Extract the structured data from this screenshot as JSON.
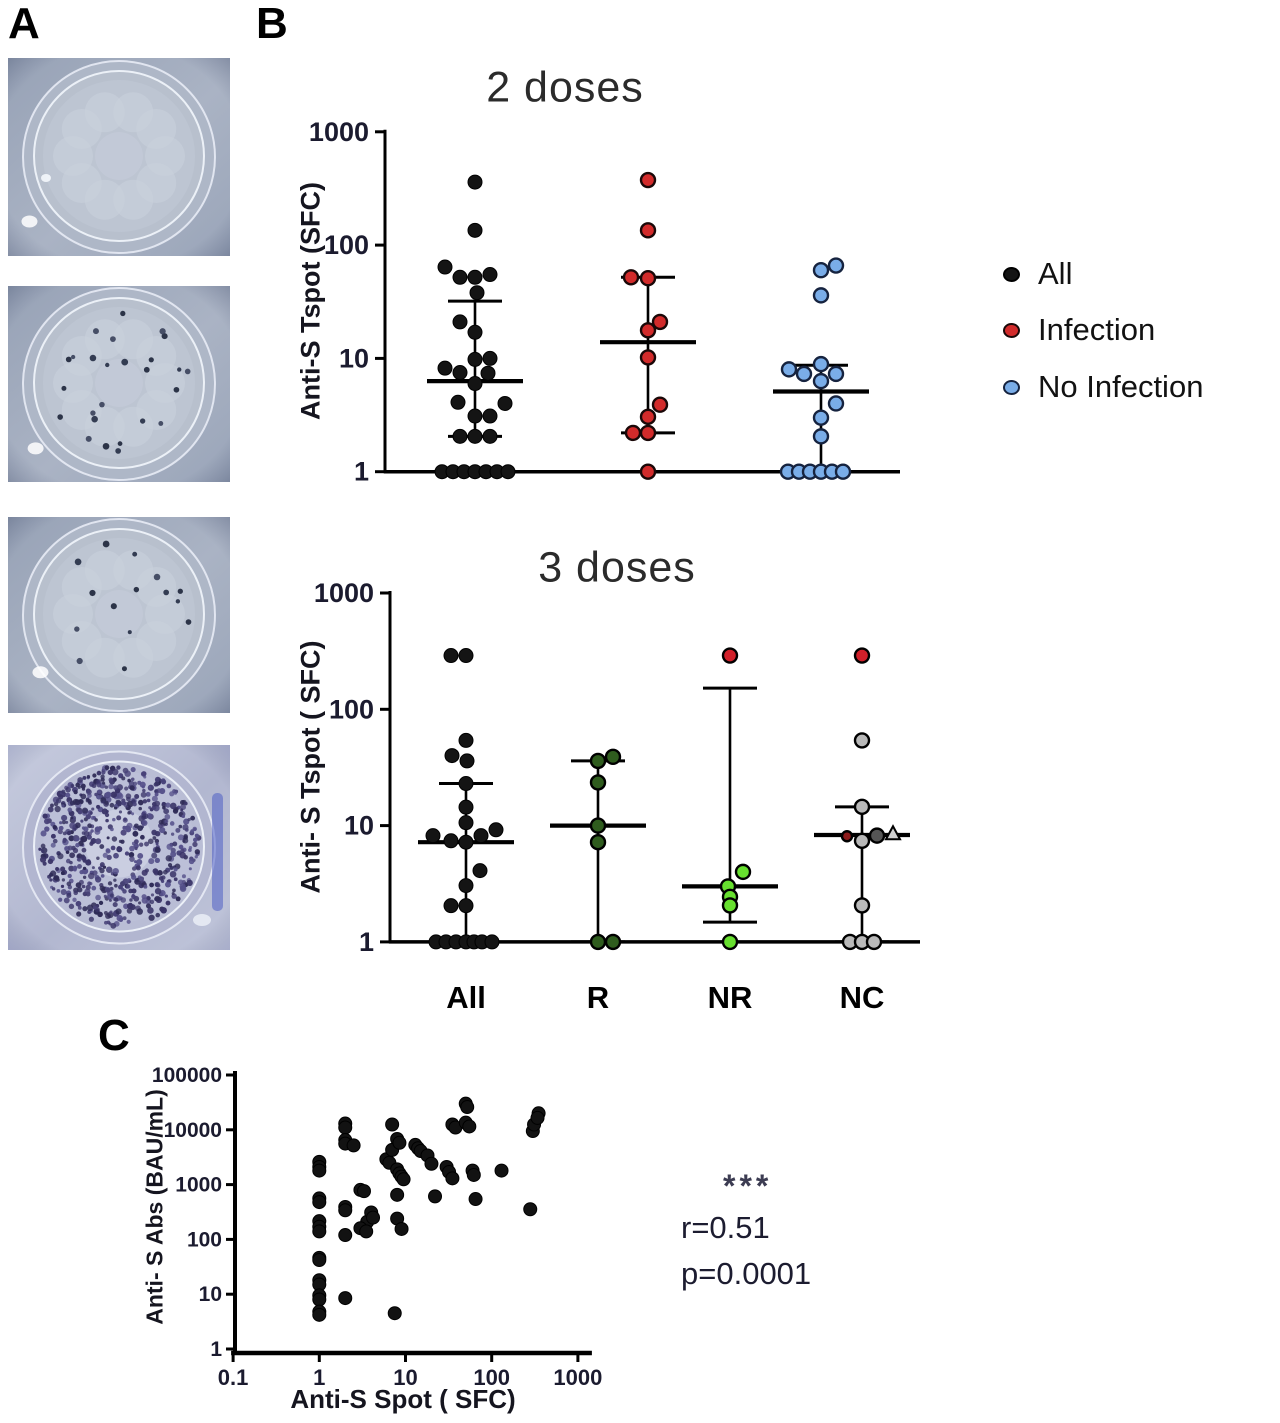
{
  "figure": {
    "background": "#ffffff"
  },
  "panels": {
    "a_label": "A",
    "b_label": "B",
    "c_label": "C"
  },
  "panel_a": {
    "description": "ELISpot well photographs",
    "wells": [
      {
        "name": "well-no-spots",
        "spot_count": 0,
        "appearance": "clean bluish well",
        "dense": false
      },
      {
        "name": "well-scattered-spots",
        "spot_count": 26,
        "appearance": "well with scattered dark spots",
        "dense": false
      },
      {
        "name": "well-few-spots",
        "spot_count": 15,
        "appearance": "well with few dark spots",
        "dense": false
      },
      {
        "name": "well-dense-spots",
        "spot_count": 650,
        "appearance": "well densely covered with dark purple spots",
        "dense": true
      }
    ]
  },
  "legend": {
    "items": [
      {
        "label": "All",
        "color": "#141414",
        "outline": "#000000"
      },
      {
        "label": "Infection",
        "color": "#d22b2b",
        "outline": "#1a0808"
      },
      {
        "label": "No Infection",
        "color": "#7aade8",
        "outline": "#16233f"
      }
    ]
  },
  "chart_data": [
    {
      "type": "dot-plot",
      "title": "2 doses",
      "ylabel": "Anti-S Tspot (SFC)",
      "yticks": [
        1,
        10,
        100,
        1000
      ],
      "ylim": [
        1,
        1000
      ],
      "legend_position": "right",
      "groups": [
        {
          "name": "All",
          "marker_color": "#141414",
          "outline": "#000000",
          "median": 6.3,
          "whisker_low": 2.05,
          "whisker_high": 32,
          "points": [
            [
              0,
              360
            ],
            [
              0,
              135
            ],
            [
              -30,
              64
            ],
            [
              -15,
              52
            ],
            [
              0,
              52
            ],
            [
              15,
              55
            ],
            [
              2,
              38
            ],
            [
              -15,
              21
            ],
            [
              0,
              17
            ],
            [
              15,
              10
            ],
            [
              0,
              9.8
            ],
            [
              -30,
              8.2
            ],
            [
              -15,
              7.5
            ],
            [
              13,
              7.4
            ],
            [
              0,
              6
            ],
            [
              -17,
              4.1
            ],
            [
              30,
              4
            ],
            [
              0,
              3.1
            ],
            [
              15,
              3.1
            ],
            [
              -15,
              2.05
            ],
            [
              0,
              2.05
            ],
            [
              15,
              2.05
            ],
            [
              -33,
              1
            ],
            [
              -22,
              1
            ],
            [
              -11,
              1
            ],
            [
              0,
              1
            ],
            [
              11,
              1
            ],
            [
              22,
              1
            ],
            [
              33,
              1
            ]
          ]
        },
        {
          "name": "Infection",
          "marker_color": "#d22b2b",
          "outline": "#1a0808",
          "median": 13.9,
          "whisker_low": 2.2,
          "whisker_high": 52,
          "points": [
            [
              0,
              375
            ],
            [
              0,
              135
            ],
            [
              -17,
              52
            ],
            [
              0,
              51
            ],
            [
              12,
              21
            ],
            [
              0,
              17.7
            ],
            [
              0,
              10.2
            ],
            [
              12,
              3.9
            ],
            [
              0,
              3.05
            ],
            [
              -15,
              2.2
            ],
            [
              0,
              2.2
            ],
            [
              0,
              1
            ]
          ]
        },
        {
          "name": "No Infection",
          "marker_color": "#7aade8",
          "outline": "#16233f",
          "median": 5.1,
          "whisker_low": 1,
          "whisker_high": 8.7,
          "points": [
            [
              0,
              60
            ],
            [
              15,
              66
            ],
            [
              0,
              36
            ],
            [
              0,
              8.9
            ],
            [
              -32,
              8
            ],
            [
              -17,
              7.3
            ],
            [
              15,
              7.3
            ],
            [
              0,
              6.3
            ],
            [
              15,
              4
            ],
            [
              0,
              3
            ],
            [
              0,
              2.05
            ],
            [
              -33,
              1
            ],
            [
              -22,
              1
            ],
            [
              -11,
              1
            ],
            [
              0,
              1
            ],
            [
              11,
              1
            ],
            [
              22,
              1
            ]
          ]
        }
      ]
    },
    {
      "type": "dot-plot",
      "title": "3 doses",
      "ylabel": "Anti- S Tspot ( SFC)",
      "yticks": [
        1,
        10,
        100,
        1000
      ],
      "ylim": [
        1,
        1000
      ],
      "categories": [
        "All",
        "R",
        "NR",
        "NC"
      ],
      "groups": [
        {
          "name": "All",
          "marker_color": "#141414",
          "outline": "#000000",
          "median": 7.2,
          "whisker_low": 1,
          "whisker_high": 23,
          "points": [
            [
              -15,
              290
            ],
            [
              0,
              290
            ],
            [
              0,
              54
            ],
            [
              -14,
              40
            ],
            [
              1,
              36
            ],
            [
              0,
              23
            ],
            [
              0,
              14.4
            ],
            [
              0,
              10.6
            ],
            [
              30,
              9.2
            ],
            [
              -33,
              8.2
            ],
            [
              15,
              8.2
            ],
            [
              -15,
              7.4
            ],
            [
              0,
              7.2
            ],
            [
              14,
              4.1
            ],
            [
              0,
              3.05
            ],
            [
              -15,
              2.05
            ],
            [
              0,
              2.05
            ],
            [
              -30,
              1
            ],
            [
              -20,
              1
            ],
            [
              -10,
              1
            ],
            [
              0,
              1
            ],
            [
              8,
              1
            ],
            [
              16,
              1
            ],
            [
              26,
              1
            ]
          ]
        },
        {
          "name": "R",
          "marker_color": "#2f5c1e",
          "outline": "#000000",
          "median": 10,
          "whisker_low": 1,
          "whisker_high": 36,
          "points": [
            [
              0,
              36
            ],
            [
              15,
              39
            ],
            [
              0,
              23.5
            ],
            [
              0,
              10
            ],
            [
              0,
              7.2
            ],
            [
              0,
              1
            ],
            [
              15,
              1
            ]
          ]
        },
        {
          "name": "NR",
          "marker_color": "#67e02f",
          "outline": "#000000",
          "median": 3,
          "whisker_low": 1.48,
          "whisker_high": 152,
          "points": [
            [
              0,
              290,
              "#d1202a"
            ],
            [
              13,
              4
            ],
            [
              -2,
              3
            ],
            [
              0,
              2.44
            ],
            [
              0,
              2.06
            ],
            [
              0,
              1
            ]
          ]
        },
        {
          "name": "NC",
          "marker_color": "#b9b9b9",
          "outline": "#000000",
          "median": 8.3,
          "whisker_low": 1,
          "whisker_high": 14.5,
          "points": [
            [
              0,
              290,
              "#d1202a"
            ],
            [
              0,
              54
            ],
            [
              0,
              14.5
            ],
            [
              -15,
              8.1,
              "#8c1a1a",
              "small"
            ],
            [
              15,
              8.2,
              "#555555"
            ],
            [
              31,
              8.6,
              "#cfcfcf",
              "triangle"
            ],
            [
              0,
              7.4
            ],
            [
              0,
              2.06
            ],
            [
              -12,
              1
            ],
            [
              0,
              1
            ],
            [
              12,
              1
            ]
          ]
        }
      ]
    },
    {
      "type": "scatter",
      "title": "",
      "xlabel": "Anti-S Spot ( SFC)",
      "ylabel": "Anti- S Abs (BAU/mL)",
      "xticks": [
        0.1,
        1,
        10,
        100,
        1000
      ],
      "yticks": [
        1,
        10,
        100,
        1000,
        10000,
        100000
      ],
      "xlim": [
        0.1,
        1000
      ],
      "ylim": [
        1,
        100000
      ],
      "marker_color": "#121212",
      "annotations": {
        "stars": "***",
        "r_text": "r=0.51",
        "p_text": "p=0.0001"
      },
      "points": [
        [
          1,
          2600
        ],
        [
          1,
          2100
        ],
        [
          1,
          1800
        ],
        [
          1,
          560
        ],
        [
          1,
          480
        ],
        [
          1,
          215
        ],
        [
          1,
          170
        ],
        [
          1,
          140
        ],
        [
          1,
          46
        ],
        [
          1,
          42
        ],
        [
          1,
          18
        ],
        [
          1,
          15
        ],
        [
          1,
          9.5
        ],
        [
          1,
          8
        ],
        [
          1,
          4.8
        ],
        [
          1,
          4.2
        ],
        [
          2,
          13000
        ],
        [
          2,
          11000
        ],
        [
          2,
          6500
        ],
        [
          2,
          5600
        ],
        [
          2,
          390
        ],
        [
          2,
          340
        ],
        [
          2,
          120
        ],
        [
          2,
          8.5
        ],
        [
          2.5,
          5200
        ],
        [
          3,
          800
        ],
        [
          3.3,
          760
        ],
        [
          3.6,
          210
        ],
        [
          3,
          160
        ],
        [
          3.5,
          140
        ],
        [
          4,
          310
        ],
        [
          4.2,
          250
        ],
        [
          6,
          2900
        ],
        [
          6.5,
          2500
        ],
        [
          7,
          12500
        ],
        [
          7,
          4300
        ],
        [
          7.5,
          4.5
        ],
        [
          8,
          6800
        ],
        [
          8.5,
          5800
        ],
        [
          8,
          1900
        ],
        [
          8.5,
          1600
        ],
        [
          9,
          1400
        ],
        [
          9.5,
          1250
        ],
        [
          8,
          650
        ],
        [
          8,
          240
        ],
        [
          9,
          155
        ],
        [
          13,
          5300
        ],
        [
          14,
          4600
        ],
        [
          15,
          4100
        ],
        [
          18,
          3400
        ],
        [
          20,
          2400
        ],
        [
          22,
          610
        ],
        [
          30,
          2100
        ],
        [
          32,
          1700
        ],
        [
          35,
          12500
        ],
        [
          38,
          11000
        ],
        [
          35,
          1300
        ],
        [
          50,
          30000
        ],
        [
          52,
          26000
        ],
        [
          50,
          13500
        ],
        [
          55,
          11500
        ],
        [
          60,
          1800
        ],
        [
          62,
          1500
        ],
        [
          65,
          545
        ],
        [
          130,
          1800
        ],
        [
          280,
          355
        ],
        [
          300,
          9500
        ],
        [
          310,
          12500
        ],
        [
          350,
          20000
        ],
        [
          340,
          16500
        ]
      ]
    }
  ]
}
